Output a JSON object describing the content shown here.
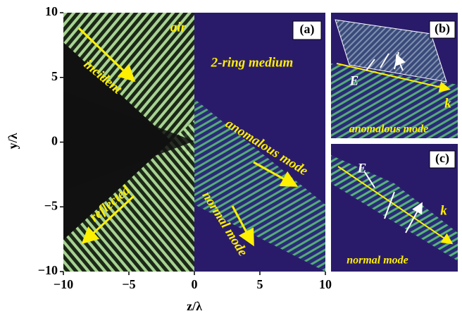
{
  "chart_data": {
    "type": "field-plot",
    "xlabel": "z/λ",
    "ylabel": "y/λ",
    "xlim": [
      -10,
      10
    ],
    "ylim": [
      -10,
      10
    ],
    "xticks": [
      {
        "value": -10,
        "label": "−10"
      },
      {
        "value": -5,
        "label": "−5"
      },
      0,
      5,
      10
    ],
    "yticks": [
      {
        "value": -10,
        "label": "−10"
      },
      {
        "value": -5,
        "label": "−5"
      },
      0,
      5,
      10
    ],
    "annotations": [
      "air",
      "2-ring medium",
      "incident",
      "reflected",
      "anomalous mode",
      "normal mode"
    ],
    "panels": [
      {
        "label": "(a)"
      },
      {
        "label": "(b)",
        "caption": "anomalous mode",
        "field": "E",
        "wavevector": "k"
      },
      {
        "label": "(c)",
        "caption": "normal mode",
        "field": "E",
        "wavevector": "k"
      }
    ]
  }
}
